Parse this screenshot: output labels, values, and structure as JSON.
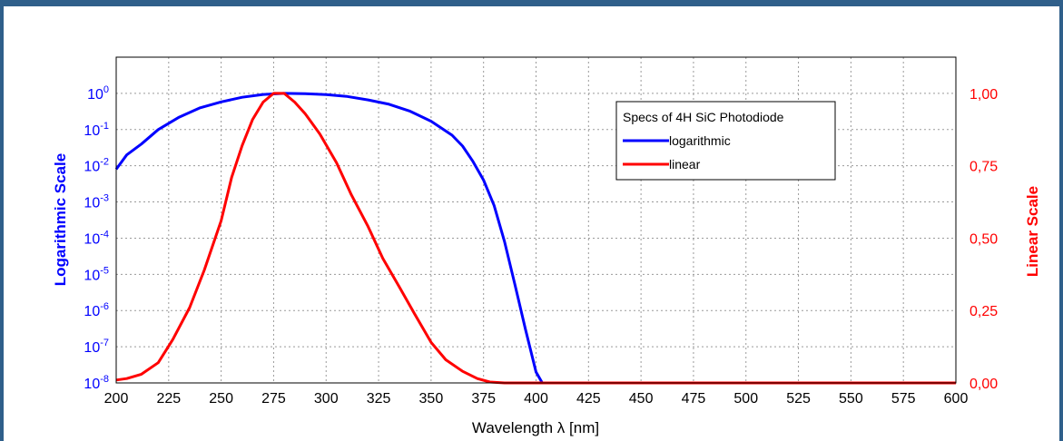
{
  "chart_data": {
    "type": "line",
    "xlabel": "Wavelength λ [nm]",
    "ylabel_left": "Logarithmic Scale",
    "ylabel_right": "Linear Scale",
    "xlim": [
      200,
      600
    ],
    "ylim_left_log10": [
      -8,
      1
    ],
    "ylim_right": [
      0,
      1.125
    ],
    "y_left_scale": "log",
    "grid": true,
    "legend_position": "top-right",
    "legend_title": "Specs of 4H SiC Photodiode",
    "x_ticks": [
      "200",
      "225",
      "250",
      "275",
      "300",
      "325",
      "350",
      "375",
      "400",
      "425",
      "450",
      "475",
      "500",
      "525",
      "550",
      "575",
      "600"
    ],
    "left_ticks": [
      {
        "base": "10",
        "exp": "0"
      },
      {
        "base": "10",
        "exp": "-1"
      },
      {
        "base": "10",
        "exp": "-2"
      },
      {
        "base": "10",
        "exp": "-3"
      },
      {
        "base": "10",
        "exp": "-4"
      },
      {
        "base": "10",
        "exp": "-5"
      },
      {
        "base": "10",
        "exp": "-6"
      },
      {
        "base": "10",
        "exp": "-7"
      },
      {
        "base": "10",
        "exp": "-8"
      }
    ],
    "right_ticks": [
      "1,00",
      "0,75",
      "0,50",
      "0,25",
      "0,00"
    ],
    "series": [
      {
        "name": "logarithmic",
        "axis": "left",
        "color": "#0000ff",
        "x": [
          200,
          205,
          212,
          220,
          230,
          240,
          250,
          260,
          270,
          280,
          290,
          300,
          310,
          320,
          330,
          340,
          350,
          360,
          365,
          370,
          375,
          380,
          385,
          390,
          395,
          400,
          403
        ],
        "y": [
          0.008,
          0.02,
          0.04,
          0.1,
          0.22,
          0.4,
          0.58,
          0.78,
          0.93,
          1.0,
          0.98,
          0.92,
          0.82,
          0.66,
          0.5,
          0.32,
          0.17,
          0.07,
          0.035,
          0.013,
          0.004,
          0.0008,
          8e-05,
          5e-06,
          3e-07,
          2e-08,
          1e-08
        ]
      },
      {
        "name": "linear",
        "axis": "right",
        "color": "#ff0000",
        "x": [
          200,
          205,
          212,
          220,
          227,
          235,
          242,
          250,
          255,
          260,
          265,
          270,
          275,
          280,
          285,
          290,
          297,
          305,
          312,
          320,
          327,
          335,
          342,
          350,
          357,
          365,
          372,
          378,
          385,
          600
        ],
        "y": [
          0.01,
          0.015,
          0.03,
          0.07,
          0.15,
          0.26,
          0.39,
          0.56,
          0.71,
          0.82,
          0.91,
          0.97,
          1.0,
          1.0,
          0.97,
          0.93,
          0.86,
          0.76,
          0.65,
          0.54,
          0.43,
          0.33,
          0.24,
          0.14,
          0.08,
          0.04,
          0.015,
          0.003,
          0.0,
          0.0
        ]
      }
    ]
  }
}
